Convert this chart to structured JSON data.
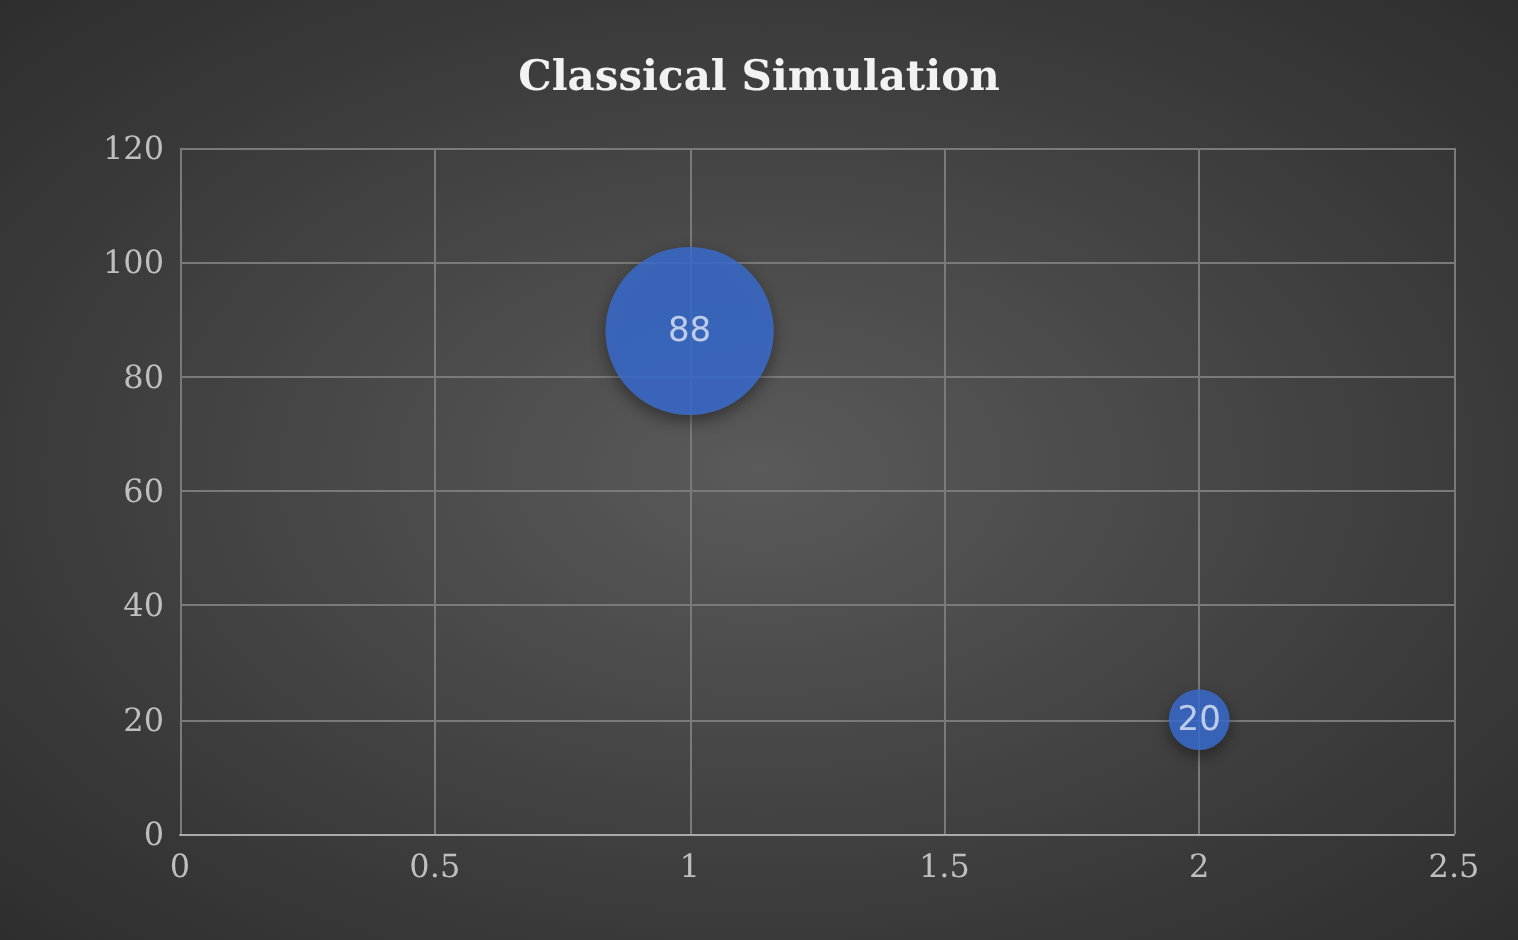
{
  "chart_data": {
    "type": "bubble",
    "title": "Classical Simulation",
    "x": [
      1,
      2
    ],
    "values": [
      88,
      20
    ],
    "sizes": [
      1,
      0.13
    ],
    "color": "#3a6bd0",
    "xlim": [
      0,
      2.5
    ],
    "xticks": [
      0,
      0.5,
      1,
      1.5,
      2,
      2.5
    ],
    "ylim": [
      0,
      120
    ],
    "yticks": [
      0,
      20,
      40,
      60,
      80,
      100,
      120
    ],
    "grid": true,
    "data_labels": true
  }
}
